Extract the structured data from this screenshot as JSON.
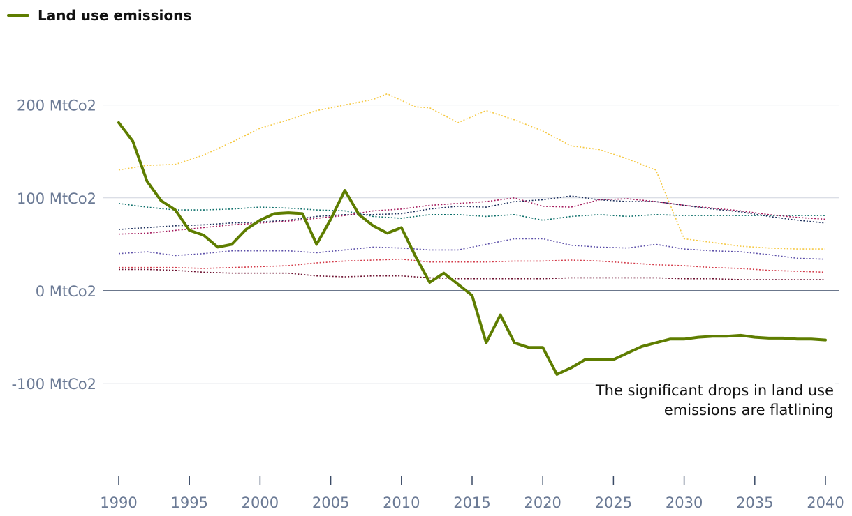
{
  "chart_data": {
    "type": "line",
    "legend": {
      "label": "Land use emissions",
      "color": "#5e7d00"
    },
    "annotation": {
      "lines": [
        "The significant drops in land use",
        "emissions are flatlining"
      ]
    },
    "y_ticks": [
      {
        "value": 200,
        "label": "200 MtCo2"
      },
      {
        "value": 100,
        "label": "100 MtCo2"
      },
      {
        "value": 0,
        "label": "0 MtCo2"
      },
      {
        "value": -100,
        "label": "-100 MtCo2"
      }
    ],
    "x_ticks": [
      1990,
      1995,
      2000,
      2005,
      2010,
      2015,
      2020,
      2025,
      2030,
      2035,
      2040
    ],
    "xlim": [
      1990,
      2040
    ],
    "ylim": [
      -200,
      300
    ],
    "highlight_series": {
      "name": "Land use emissions",
      "color": "#5e7d00",
      "x": [
        1990,
        1991,
        1992,
        1993,
        1994,
        1995,
        1996,
        1997,
        1998,
        1999,
        2000,
        2001,
        2002,
        2003,
        2004,
        2005,
        2006,
        2007,
        2008,
        2009,
        2010,
        2011,
        2012,
        2013,
        2014,
        2015,
        2016,
        2017,
        2018,
        2019,
        2020,
        2021,
        2022,
        2023,
        2024,
        2025,
        2026,
        2027,
        2028,
        2029,
        2030,
        2031,
        2032,
        2033,
        2034,
        2035,
        2036,
        2037,
        2038,
        2039,
        2040
      ],
      "values": [
        181,
        161,
        118,
        97,
        87,
        65,
        60,
        47,
        50,
        66,
        76,
        83,
        84,
        83,
        50,
        77,
        108,
        82,
        70,
        62,
        68,
        37,
        9,
        19,
        7,
        -5,
        -56,
        -26,
        -56,
        -61,
        -61,
        -90,
        -83,
        -74,
        -74,
        -74,
        -67,
        -60,
        -56,
        -52,
        -52,
        -50,
        -49,
        -49,
        -48,
        -50,
        -51,
        -51,
        -52,
        -52,
        -53
      ]
    },
    "background_series": [
      {
        "name": "series-yellow",
        "color": "#f5c842",
        "x": [
          1990,
          1992,
          1994,
          1996,
          1998,
          2000,
          2002,
          2004,
          2006,
          2008,
          2009,
          2011,
          2012,
          2014,
          2016,
          2018,
          2020,
          2022,
          2024,
          2026,
          2028,
          2030,
          2032,
          2034,
          2036,
          2038,
          2040
        ],
        "values": [
          130,
          135,
          136,
          146,
          160,
          175,
          184,
          194,
          200,
          206,
          212,
          198,
          197,
          181,
          194,
          184,
          172,
          156,
          152,
          142,
          130,
          56,
          52,
          48,
          46,
          45,
          45
        ]
      },
      {
        "name": "series-teal",
        "color": "#0b6e69",
        "x": [
          1990,
          1992,
          1994,
          1996,
          1998,
          2000,
          2002,
          2004,
          2006,
          2008,
          2010,
          2012,
          2014,
          2016,
          2018,
          2020,
          2022,
          2024,
          2026,
          2028,
          2030,
          2032,
          2034,
          2036,
          2038,
          2040
        ],
        "values": [
          94,
          90,
          87,
          87,
          88,
          90,
          89,
          87,
          86,
          80,
          78,
          82,
          82,
          80,
          82,
          76,
          80,
          82,
          80,
          82,
          81,
          81,
          81,
          81,
          81,
          81
        ]
      },
      {
        "name": "series-navy",
        "color": "#1a2d5a",
        "x": [
          1990,
          1992,
          1994,
          1996,
          1998,
          2000,
          2002,
          2004,
          2006,
          2008,
          2010,
          2012,
          2014,
          2016,
          2018,
          2020,
          2022,
          2024,
          2026,
          2028,
          2030,
          2032,
          2034,
          2036,
          2038,
          2040
        ],
        "values": [
          66,
          68,
          70,
          71,
          73,
          74,
          76,
          80,
          82,
          82,
          83,
          88,
          91,
          90,
          96,
          98,
          102,
          98,
          96,
          96,
          92,
          88,
          85,
          80,
          76,
          73
        ]
      },
      {
        "name": "series-magenta",
        "color": "#a3195b",
        "x": [
          1990,
          1992,
          1994,
          1996,
          1998,
          2000,
          2002,
          2004,
          2006,
          2008,
          2010,
          2012,
          2014,
          2016,
          2018,
          2020,
          2022,
          2024,
          2026,
          2028,
          2030,
          2032,
          2034,
          2036,
          2038,
          2040
        ],
        "values": [
          61,
          62,
          65,
          68,
          71,
          73,
          75,
          78,
          81,
          86,
          88,
          92,
          94,
          96,
          100,
          91,
          90,
          98,
          99,
          96,
          92,
          89,
          86,
          82,
          79,
          77
        ]
      },
      {
        "name": "series-purple",
        "color": "#5b4ea8",
        "x": [
          1990,
          1992,
          1994,
          1996,
          1998,
          2000,
          2002,
          2004,
          2006,
          2008,
          2010,
          2012,
          2014,
          2016,
          2018,
          2020,
          2022,
          2024,
          2026,
          2028,
          2030,
          2032,
          2034,
          2036,
          2038,
          2040
        ],
        "values": [
          40,
          42,
          38,
          40,
          43,
          43,
          43,
          41,
          44,
          47,
          46,
          44,
          44,
          50,
          56,
          56,
          49,
          47,
          46,
          50,
          45,
          43,
          42,
          39,
          35,
          34
        ]
      },
      {
        "name": "series-red",
        "color": "#d33a48",
        "x": [
          1990,
          1992,
          1994,
          1996,
          1998,
          2000,
          2002,
          2004,
          2006,
          2008,
          2010,
          2012,
          2014,
          2016,
          2018,
          2020,
          2022,
          2024,
          2026,
          2028,
          2030,
          2032,
          2034,
          2036,
          2038,
          2040
        ],
        "values": [
          25,
          25,
          25,
          24,
          25,
          26,
          27,
          30,
          32,
          33,
          34,
          31,
          31,
          31,
          32,
          32,
          33,
          32,
          30,
          28,
          27,
          25,
          24,
          22,
          21,
          20
        ]
      },
      {
        "name": "series-maroon",
        "color": "#6b0f2e",
        "x": [
          1990,
          1992,
          1994,
          1996,
          1998,
          2000,
          2002,
          2004,
          2006,
          2008,
          2010,
          2012,
          2014,
          2016,
          2018,
          2020,
          2022,
          2024,
          2026,
          2028,
          2030,
          2032,
          2034,
          2036,
          2038,
          2040
        ],
        "values": [
          23,
          23,
          22,
          20,
          19,
          19,
          19,
          16,
          15,
          16,
          16,
          14,
          13,
          13,
          13,
          13,
          14,
          14,
          14,
          14,
          13,
          13,
          12,
          12,
          12,
          12
        ]
      }
    ]
  }
}
